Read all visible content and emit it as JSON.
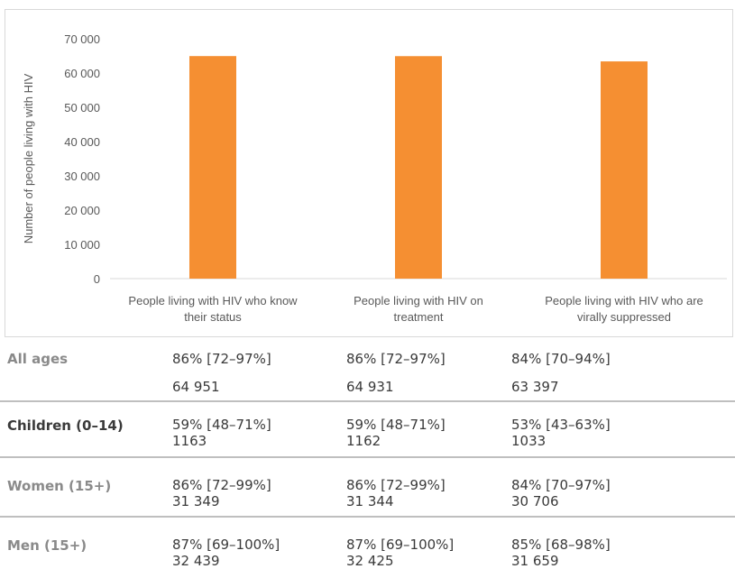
{
  "chart_data": {
    "type": "bar",
    "categories": [
      [
        "People living with HIV who know",
        "their status"
      ],
      [
        "People living with HIV on",
        "treatment"
      ],
      [
        "People living with HIV who are",
        "virally suppressed"
      ]
    ],
    "values": [
      64951,
      64931,
      63397
    ],
    "ylabel": "Number of people living with HIV",
    "ylim": [
      0,
      70000
    ],
    "yticks": [
      0,
      10000,
      20000,
      30000,
      40000,
      50000,
      60000,
      70000
    ],
    "ytick_labels": [
      "0",
      "10 000",
      "20 000",
      "30 000",
      "40 000",
      "50 000",
      "60 000",
      "70 000"
    ],
    "bar_color": "#f58f32",
    "grid": false
  },
  "table": {
    "rows": [
      {
        "label": "All ages",
        "label_color": "grey",
        "cells": [
          {
            "pct": "86% [72–97%]",
            "num": "64 951"
          },
          {
            "pct": "86% [72–97%]",
            "num": "64 931"
          },
          {
            "pct": "84% [70–94%]",
            "num": "63 397"
          }
        ]
      },
      {
        "label": "Children (0–14)",
        "label_color": "dark",
        "cells": [
          {
            "pct": "59% [48–71%]",
            "num": "1163"
          },
          {
            "pct": "59% [48–71%]",
            "num": "1162"
          },
          {
            "pct": "53% [43–63%]",
            "num": "1033"
          }
        ]
      },
      {
        "label": "Women (15+)",
        "label_color": "grey",
        "cells": [
          {
            "pct": "86% [72–99%]",
            "num": "31 349"
          },
          {
            "pct": "86% [72–99%]",
            "num": "31 344"
          },
          {
            "pct": "84% [70–97%]",
            "num": "30 706"
          }
        ]
      },
      {
        "label": "Men (15+)",
        "label_color": "grey",
        "cells": [
          {
            "pct": "87% [69–100%]",
            "num": "32 439"
          },
          {
            "pct": "87% [69–100%]",
            "num": "32 425"
          },
          {
            "pct": "85% [68–98%]",
            "num": "31 659"
          }
        ]
      }
    ]
  }
}
